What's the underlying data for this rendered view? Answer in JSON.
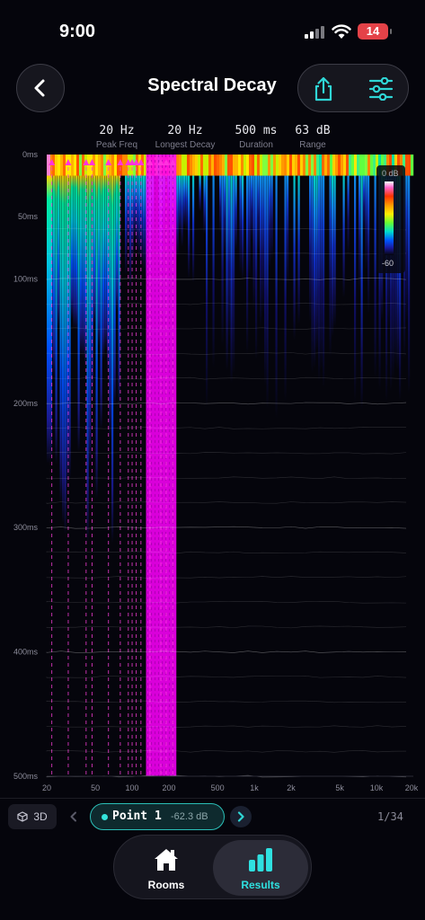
{
  "status_bar": {
    "time": "9:00",
    "battery": "14"
  },
  "header": {
    "title": "Spectral Decay",
    "back_icon": "chevron-left-icon",
    "share_icon": "share-icon",
    "settings_icon": "sliders-icon"
  },
  "stats": [
    {
      "value": "20 Hz",
      "label": "Peak Freq"
    },
    {
      "value": "20 Hz",
      "label": "Longest Decay"
    },
    {
      "value": "500 ms",
      "label": "Duration"
    },
    {
      "value": "63 dB",
      "label": "Range"
    }
  ],
  "chart_data": {
    "type": "heatmap",
    "x_scale": "log",
    "xlim": [
      20,
      20000
    ],
    "ylim": [
      0,
      500
    ],
    "x_ticks": [
      "20",
      "50",
      "100",
      "200",
      "500",
      "1k",
      "2k",
      "5k",
      "10k",
      "20k"
    ],
    "x_tick_values": [
      20,
      50,
      100,
      200,
      500,
      1000,
      2000,
      5000,
      10000,
      20000
    ],
    "y_ticks": [
      "0ms",
      "50ms",
      "100ms",
      "200ms",
      "300ms",
      "400ms",
      "500ms"
    ],
    "y_tick_values": [
      0,
      50,
      100,
      200,
      300,
      400,
      500
    ],
    "legend": {
      "top": "0 dB",
      "bottom": "-60",
      "placement": "top-right"
    },
    "peak_markers_hz": [
      22,
      30,
      42,
      47,
      64,
      80,
      93,
      100,
      108,
      118,
      140,
      172,
      190,
      215
    ],
    "long_decay_band_hz": [
      130,
      230
    ],
    "colors": {
      "hot": "#ff00ff",
      "loud": "#ff7a00",
      "mid": "#ffe000",
      "low": "#00e0cc",
      "quiet": "#1030ff",
      "bg": "#05050c"
    }
  },
  "point_selector": {
    "view_toggle": "3D",
    "point_name": "Point 1",
    "point_level": "-62.3 dB",
    "page": "1/34"
  },
  "tabs": [
    {
      "label": "Rooms",
      "icon": "house-icon",
      "active": false
    },
    {
      "label": "Results",
      "icon": "bar-chart-icon",
      "active": true
    }
  ]
}
